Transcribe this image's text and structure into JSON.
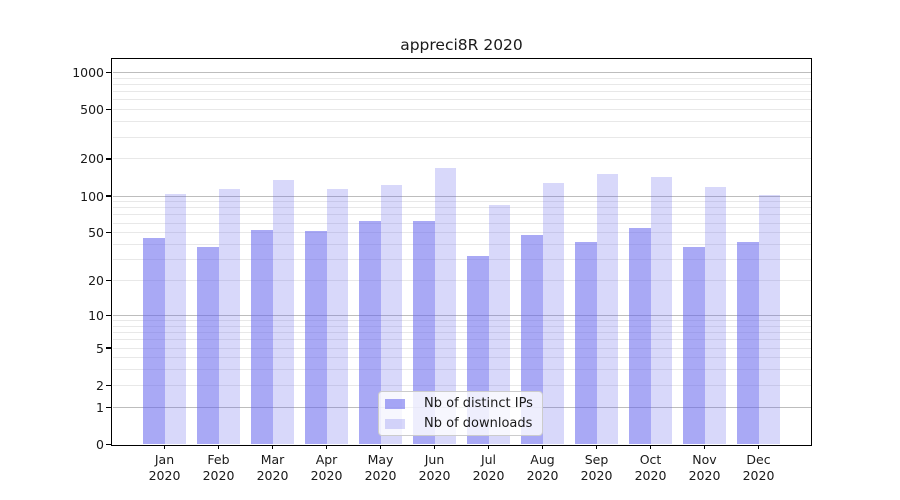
{
  "title": "appreci8R 2020",
  "colors": {
    "bar_ips": "rgba(98,98,236,0.55)",
    "bar_downloads": "rgba(98,98,236,0.25)",
    "grid_major": "#bdbdbd",
    "grid_minor": "#e8e8e8",
    "axis": "#000000",
    "text": "#1a1a1a",
    "legend_bg": "rgba(255,255,255,0.8)",
    "legend_border": "#cccccc"
  },
  "chart_data": {
    "type": "bar",
    "title": "appreci8R 2020",
    "categories": [
      "Jan",
      "Feb",
      "Mar",
      "Apr",
      "May",
      "Jun",
      "Jul",
      "Aug",
      "Sep",
      "Oct",
      "Nov",
      "Dec"
    ],
    "category_year": "2020",
    "series": [
      {
        "name": "Nb of distinct IPs",
        "values": [
          45,
          38,
          53,
          52,
          62,
          63,
          32,
          48,
          42,
          55,
          38,
          42
        ]
      },
      {
        "name": "Nb of downloads",
        "values": [
          103,
          113,
          135,
          113,
          122,
          170,
          85,
          128,
          150,
          144,
          118,
          101
        ]
      }
    ],
    "y_axis": {
      "scale": "symlog",
      "tick_labels": [
        "0",
        "1",
        "2",
        "5",
        "10",
        "20",
        "50",
        "100",
        "200",
        "500",
        "1000"
      ],
      "ticks": [
        0,
        1,
        2,
        5,
        10,
        20,
        50,
        100,
        200,
        500,
        1000
      ],
      "minor_gridlines": [
        2,
        3,
        4,
        5,
        6,
        7,
        8,
        9,
        20,
        30,
        40,
        50,
        60,
        70,
        80,
        90,
        200,
        300,
        400,
        500,
        600,
        700,
        800,
        900
      ],
      "major_gridlines": [
        1,
        10,
        100,
        1000
      ],
      "max": 1000
    },
    "x_axis": {
      "label_line2": "2020"
    },
    "legend": {
      "position": "inside-bottom-center"
    },
    "grid": true
  }
}
